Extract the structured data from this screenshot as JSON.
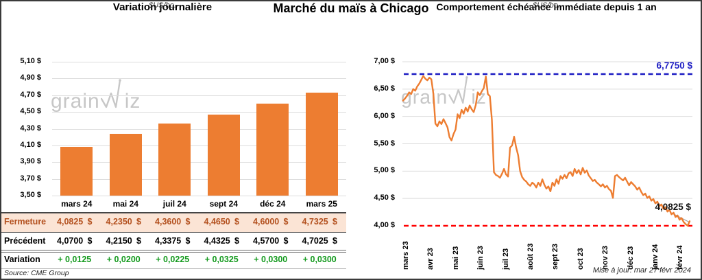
{
  "page": {
    "title": "Marché du maïs à Chicago"
  },
  "watermark": {
    "part1": "grain",
    "part2": "iz"
  },
  "colors": {
    "bar": "#ED7D31",
    "line": "#ED7D31",
    "grid": "#dcdcdc",
    "blue_ref": "#2020C4",
    "red_ref": "#FF0000",
    "fermeture_text": "#B3501E",
    "fermeture_bg": "#FBE4D5",
    "variation_green": "#149A1E",
    "watermark": "#c7c7c7"
  },
  "left_panel": {
    "source": "Source: CME Group",
    "table": {
      "rows": [
        {
          "id": "fermeture",
          "label": "Fermeture",
          "values": [
            "4,0825",
            "4,2350",
            "4,3600",
            "4,4650",
            "4,6000",
            "4,7325"
          ],
          "suffix": "$"
        },
        {
          "id": "precedent",
          "label": "Précédent",
          "values": [
            "4,0700",
            "4,2150",
            "4,3375",
            "4,4325",
            "4,5700",
            "4,7025"
          ],
          "suffix": "$"
        },
        {
          "id": "variation",
          "label": "Variation",
          "values": [
            "+ 0,0125",
            "+ 0,0200",
            "+ 0,0225",
            "+ 0,0325",
            "+ 0,0300",
            "+ 0,0300"
          ],
          "suffix": ""
        }
      ]
    }
  },
  "right_panel": {
    "updated": "Mise à jour: mar 27 févr 2024"
  },
  "chart_data": [
    {
      "type": "bar",
      "title": "Variation  journalière",
      "subtitle": "- $US/bo. -",
      "categories": [
        "mars 24",
        "mai 24",
        "juil 24",
        "sept 24",
        "déc 24",
        "mars 25"
      ],
      "values": [
        4.0825,
        4.235,
        4.36,
        4.465,
        4.6,
        4.7325
      ],
      "ylim": [
        3.5,
        5.1
      ],
      "ytick_step": 0.2,
      "y_tick_labels": [
        "5,10 $",
        "4,90 $",
        "4,70 $",
        "4,50 $",
        "4,30 $",
        "4,10 $",
        "3,90 $",
        "3,70 $",
        "3,50 $"
      ],
      "grid": true,
      "bar_color": "#ED7D31"
    },
    {
      "type": "line",
      "title": "Comportement  échéance  immédiate  depuis 1 an",
      "subtitle": "- $US/bo. -",
      "x_labels": [
        "mars 23",
        "avr 23",
        "mai 23",
        "juin 23",
        "juil 23",
        "août 23",
        "sept 23",
        "oct 23",
        "nov 23",
        "déc 23",
        "janv 24",
        "févr 24"
      ],
      "ylim": [
        4.0,
        7.0
      ],
      "ytick_step": 0.5,
      "y_tick_labels": [
        "7,00 $",
        "6,50 $",
        "6,00 $",
        "5,50 $",
        "5,00 $",
        "4,50 $",
        "4,00 $"
      ],
      "grid": true,
      "line_color": "#ED7D31",
      "ref_lines": [
        {
          "value": 6.775,
          "color": "#2020C4",
          "style": "dashed",
          "label": "6,7750 $"
        },
        {
          "value": 4.0,
          "color": "#FF0000",
          "style": "dashed",
          "label": ""
        }
      ],
      "last_value": 4.0825,
      "last_value_label": "4,0825 $",
      "values": [
        6.29,
        6.33,
        6.38,
        6.44,
        6.41,
        6.5,
        6.47,
        6.55,
        6.6,
        6.67,
        6.74,
        6.69,
        6.66,
        6.71,
        6.68,
        6.41,
        5.87,
        5.82,
        5.91,
        5.86,
        5.95,
        5.88,
        5.8,
        5.62,
        5.56,
        5.68,
        5.76,
        6.04,
        5.97,
        6.12,
        6.05,
        6.16,
        6.09,
        6.2,
        6.13,
        6.08,
        6.21,
        6.44,
        6.39,
        6.46,
        6.52,
        6.73,
        6.41,
        6.37,
        5.94,
        4.98,
        4.93,
        4.91,
        4.88,
        4.95,
        5.04,
        4.94,
        4.9,
        5.43,
        5.47,
        5.63,
        5.44,
        5.29,
        5.0,
        4.89,
        4.84,
        4.81,
        4.76,
        4.73,
        4.79,
        4.76,
        4.7,
        4.79,
        4.73,
        4.85,
        4.75,
        4.68,
        4.72,
        4.63,
        4.79,
        4.73,
        4.85,
        4.77,
        4.91,
        4.86,
        4.93,
        4.87,
        4.96,
        4.98,
        4.91,
        5.04,
        4.96,
        5.02,
        4.94,
        5.06,
        4.97,
        5.01,
        4.92,
        4.87,
        4.82,
        4.84,
        4.79,
        4.76,
        4.72,
        4.76,
        4.7,
        4.73,
        4.67,
        4.64,
        4.51,
        4.91,
        4.93,
        4.89,
        4.86,
        4.83,
        4.88,
        4.81,
        4.74,
        4.8,
        4.76,
        4.72,
        4.66,
        4.7,
        4.62,
        4.56,
        4.59,
        4.51,
        4.54,
        4.46,
        4.49,
        4.41,
        4.44,
        4.36,
        4.39,
        4.31,
        4.34,
        4.26,
        4.29,
        4.21,
        4.24,
        4.16,
        4.19,
        4.11,
        4.14,
        4.07,
        4.03,
        4.0,
        4.0825
      ]
    }
  ]
}
